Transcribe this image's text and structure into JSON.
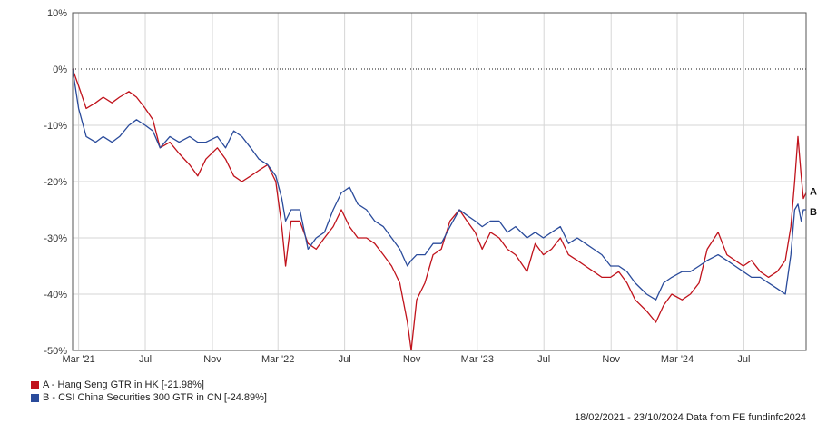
{
  "chart_data": {
    "type": "line",
    "ylim": [
      -50,
      10
    ],
    "grid": true,
    "y_ticks": [
      "10%",
      "0%",
      "-10%",
      "-20%",
      "-30%",
      "-40%",
      "-50%"
    ],
    "x_ticks": [
      "Mar '21",
      "Jul",
      "Nov",
      "Mar '22",
      "Jul",
      "Nov",
      "Mar '23",
      "Jul",
      "Nov",
      "Mar '24",
      "Jul"
    ],
    "series": [
      {
        "name": "A - Hang Seng GTR in HK [-21.98%]",
        "end_label": "A",
        "color": "#c0121b",
        "points": [
          [
            "2021-02-18",
            0
          ],
          [
            "2021-03-01",
            -3
          ],
          [
            "2021-03-15",
            -7
          ],
          [
            "2021-04-01",
            -6
          ],
          [
            "2021-04-15",
            -5
          ],
          [
            "2021-05-01",
            -6
          ],
          [
            "2021-05-15",
            -5
          ],
          [
            "2021-06-01",
            -4
          ],
          [
            "2021-06-15",
            -5
          ],
          [
            "2021-07-01",
            -7
          ],
          [
            "2021-07-15",
            -9
          ],
          [
            "2021-07-28",
            -14
          ],
          [
            "2021-08-15",
            -13
          ],
          [
            "2021-09-01",
            -15
          ],
          [
            "2021-09-20",
            -17
          ],
          [
            "2021-10-05",
            -19
          ],
          [
            "2021-10-20",
            -16
          ],
          [
            "2021-11-10",
            -14
          ],
          [
            "2021-11-25",
            -16
          ],
          [
            "2021-12-10",
            -19
          ],
          [
            "2021-12-25",
            -20
          ],
          [
            "2022-01-10",
            -19
          ],
          [
            "2022-01-25",
            -18
          ],
          [
            "2022-02-10",
            -17
          ],
          [
            "2022-02-25",
            -20
          ],
          [
            "2022-03-08",
            -28
          ],
          [
            "2022-03-15",
            -35
          ],
          [
            "2022-03-25",
            -27
          ],
          [
            "2022-04-10",
            -27
          ],
          [
            "2022-04-25",
            -31
          ],
          [
            "2022-05-10",
            -32
          ],
          [
            "2022-05-25",
            -30
          ],
          [
            "2022-06-10",
            -28
          ],
          [
            "2022-06-25",
            -25
          ],
          [
            "2022-07-10",
            -28
          ],
          [
            "2022-07-25",
            -30
          ],
          [
            "2022-08-10",
            -30
          ],
          [
            "2022-08-25",
            -31
          ],
          [
            "2022-09-10",
            -33
          ],
          [
            "2022-09-25",
            -35
          ],
          [
            "2022-10-10",
            -38
          ],
          [
            "2022-10-24",
            -45
          ],
          [
            "2022-10-31",
            -50
          ],
          [
            "2022-11-10",
            -41
          ],
          [
            "2022-11-25",
            -38
          ],
          [
            "2022-12-10",
            -33
          ],
          [
            "2022-12-25",
            -32
          ],
          [
            "2023-01-10",
            -27
          ],
          [
            "2023-01-27",
            -25
          ],
          [
            "2023-02-10",
            -27
          ],
          [
            "2023-02-25",
            -29
          ],
          [
            "2023-03-10",
            -32
          ],
          [
            "2023-03-25",
            -29
          ],
          [
            "2023-04-10",
            -30
          ],
          [
            "2023-04-25",
            -32
          ],
          [
            "2023-05-10",
            -33
          ],
          [
            "2023-05-31",
            -36
          ],
          [
            "2023-06-15",
            -31
          ],
          [
            "2023-06-30",
            -33
          ],
          [
            "2023-07-15",
            -32
          ],
          [
            "2023-07-31",
            -30
          ],
          [
            "2023-08-15",
            -33
          ],
          [
            "2023-08-31",
            -34
          ],
          [
            "2023-09-15",
            -35
          ],
          [
            "2023-09-30",
            -36
          ],
          [
            "2023-10-15",
            -37
          ],
          [
            "2023-10-31",
            -37
          ],
          [
            "2023-11-15",
            -36
          ],
          [
            "2023-11-30",
            -38
          ],
          [
            "2023-12-15",
            -41
          ],
          [
            "2024-01-05",
            -43
          ],
          [
            "2024-01-22",
            -45
          ],
          [
            "2024-02-05",
            -42
          ],
          [
            "2024-02-20",
            -40
          ],
          [
            "2024-03-10",
            -41
          ],
          [
            "2024-03-25",
            -40
          ],
          [
            "2024-04-10",
            -38
          ],
          [
            "2024-04-25",
            -32
          ],
          [
            "2024-05-15",
            -29
          ],
          [
            "2024-05-31",
            -33
          ],
          [
            "2024-06-15",
            -34
          ],
          [
            "2024-06-30",
            -35
          ],
          [
            "2024-07-15",
            -34
          ],
          [
            "2024-07-31",
            -36
          ],
          [
            "2024-08-15",
            -37
          ],
          [
            "2024-08-31",
            -36
          ],
          [
            "2024-09-15",
            -34
          ],
          [
            "2024-09-25",
            -28
          ],
          [
            "2024-10-02",
            -20
          ],
          [
            "2024-10-08",
            -12
          ],
          [
            "2024-10-14",
            -19
          ],
          [
            "2024-10-18",
            -23
          ],
          [
            "2024-10-23",
            -22
          ]
        ]
      },
      {
        "name": "B - CSI China Securities 300 GTR in CN [-24.89%]",
        "end_label": "B",
        "color": "#2a4b9b",
        "points": [
          [
            "2021-02-18",
            0
          ],
          [
            "2021-03-01",
            -7
          ],
          [
            "2021-03-15",
            -12
          ],
          [
            "2021-04-01",
            -13
          ],
          [
            "2021-04-15",
            -12
          ],
          [
            "2021-05-01",
            -13
          ],
          [
            "2021-05-15",
            -12
          ],
          [
            "2021-06-01",
            -10
          ],
          [
            "2021-06-15",
            -9
          ],
          [
            "2021-07-01",
            -10
          ],
          [
            "2021-07-15",
            -11
          ],
          [
            "2021-07-28",
            -14
          ],
          [
            "2021-08-15",
            -12
          ],
          [
            "2021-09-01",
            -13
          ],
          [
            "2021-09-20",
            -12
          ],
          [
            "2021-10-05",
            -13
          ],
          [
            "2021-10-20",
            -13
          ],
          [
            "2021-11-10",
            -12
          ],
          [
            "2021-11-25",
            -14
          ],
          [
            "2021-12-10",
            -11
          ],
          [
            "2021-12-25",
            -12
          ],
          [
            "2022-01-10",
            -14
          ],
          [
            "2022-01-25",
            -16
          ],
          [
            "2022-02-10",
            -17
          ],
          [
            "2022-02-25",
            -19
          ],
          [
            "2022-03-08",
            -23
          ],
          [
            "2022-03-15",
            -27
          ],
          [
            "2022-03-25",
            -25
          ],
          [
            "2022-04-10",
            -25
          ],
          [
            "2022-04-25",
            -32
          ],
          [
            "2022-05-10",
            -30
          ],
          [
            "2022-05-25",
            -29
          ],
          [
            "2022-06-10",
            -25
          ],
          [
            "2022-06-25",
            -22
          ],
          [
            "2022-07-10",
            -21
          ],
          [
            "2022-07-25",
            -24
          ],
          [
            "2022-08-10",
            -25
          ],
          [
            "2022-08-25",
            -27
          ],
          [
            "2022-09-10",
            -28
          ],
          [
            "2022-09-25",
            -30
          ],
          [
            "2022-10-10",
            -32
          ],
          [
            "2022-10-24",
            -35
          ],
          [
            "2022-10-31",
            -34
          ],
          [
            "2022-11-10",
            -33
          ],
          [
            "2022-11-25",
            -33
          ],
          [
            "2022-12-10",
            -31
          ],
          [
            "2022-12-25",
            -31
          ],
          [
            "2023-01-10",
            -28
          ],
          [
            "2023-01-27",
            -25
          ],
          [
            "2023-02-10",
            -26
          ],
          [
            "2023-02-25",
            -27
          ],
          [
            "2023-03-10",
            -28
          ],
          [
            "2023-03-25",
            -27
          ],
          [
            "2023-04-10",
            -27
          ],
          [
            "2023-04-25",
            -29
          ],
          [
            "2023-05-10",
            -28
          ],
          [
            "2023-05-31",
            -30
          ],
          [
            "2023-06-15",
            -29
          ],
          [
            "2023-06-30",
            -30
          ],
          [
            "2023-07-15",
            -29
          ],
          [
            "2023-07-31",
            -28
          ],
          [
            "2023-08-15",
            -31
          ],
          [
            "2023-08-31",
            -30
          ],
          [
            "2023-09-15",
            -31
          ],
          [
            "2023-09-30",
            -32
          ],
          [
            "2023-10-15",
            -33
          ],
          [
            "2023-10-31",
            -35
          ],
          [
            "2023-11-15",
            -35
          ],
          [
            "2023-11-30",
            -36
          ],
          [
            "2023-12-15",
            -38
          ],
          [
            "2024-01-05",
            -40
          ],
          [
            "2024-01-22",
            -41
          ],
          [
            "2024-02-05",
            -38
          ],
          [
            "2024-02-20",
            -37
          ],
          [
            "2024-03-10",
            -36
          ],
          [
            "2024-03-25",
            -36
          ],
          [
            "2024-04-10",
            -35
          ],
          [
            "2024-04-25",
            -34
          ],
          [
            "2024-05-15",
            -33
          ],
          [
            "2024-05-31",
            -34
          ],
          [
            "2024-06-15",
            -35
          ],
          [
            "2024-06-30",
            -36
          ],
          [
            "2024-07-15",
            -37
          ],
          [
            "2024-07-31",
            -37
          ],
          [
            "2024-08-15",
            -38
          ],
          [
            "2024-08-31",
            -39
          ],
          [
            "2024-09-15",
            -40
          ],
          [
            "2024-09-25",
            -33
          ],
          [
            "2024-10-02",
            -25
          ],
          [
            "2024-10-08",
            -24
          ],
          [
            "2024-10-14",
            -27
          ],
          [
            "2024-10-18",
            -25
          ],
          [
            "2024-10-23",
            -25
          ]
        ]
      }
    ]
  },
  "footer": {
    "date_range": "18/02/2021 - 23/10/2024",
    "source": "Data from FE fundinfo2024"
  }
}
